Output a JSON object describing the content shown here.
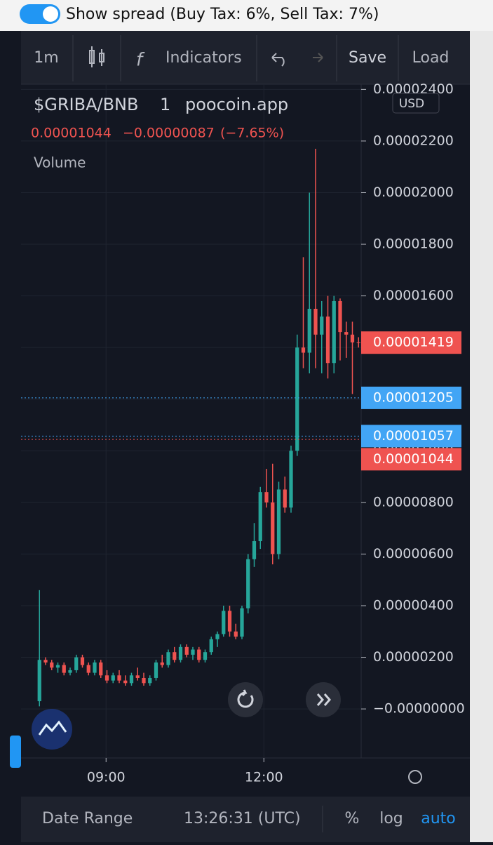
{
  "spread_toggle": {
    "label": "Show spread (Buy Tax: 6%, Sell Tax: 7%)"
  },
  "toolbar": {
    "interval": "1m",
    "indicators": "Indicators",
    "save": "Save",
    "load": "Load"
  },
  "legend": {
    "symbol": "$GRIBA/BNB",
    "interval": "1",
    "source": "poocoin.app",
    "currency": "USD",
    "last": "0.00001044",
    "change": "−0.00000087",
    "change_pct": "(−7.65%)",
    "volume": "Volume"
  },
  "chart_data": {
    "type": "candlestick",
    "up_color": "#26a69a",
    "down_color": "#ef5350",
    "x": [
      464,
      471,
      478,
      485,
      492,
      499,
      506,
      513,
      520,
      527,
      534,
      541,
      548,
      555,
      562,
      569,
      576,
      583,
      590,
      597,
      604,
      611,
      618,
      625,
      632,
      639,
      646,
      653,
      660,
      667,
      674,
      681,
      688,
      695,
      702,
      709,
      716,
      723,
      730,
      737,
      744,
      751,
      758,
      765,
      772,
      779,
      786,
      793,
      800,
      807,
      814,
      821,
      828
    ],
    "open": [
      3e-07,
      1.9e-06,
      1.8e-06,
      1.6e-06,
      1.7e-06,
      1.4e-06,
      1.5e-06,
      2e-06,
      1.7e-06,
      1.4e-06,
      1.8e-06,
      1.3e-06,
      1.1e-06,
      1.3e-06,
      1.1e-06,
      1e-06,
      1.3e-06,
      1.2e-06,
      1e-06,
      1.2e-06,
      1.8e-06,
      1.7e-06,
      2.2e-06,
      1.9e-06,
      2.4e-06,
      2.1e-06,
      2.3e-06,
      1.9e-06,
      2.2e-06,
      2.7e-06,
      2.9e-06,
      3.8e-06,
      3e-06,
      2.8e-06,
      3.9e-06,
      5.8e-06,
      6.5e-06,
      8.4e-06,
      8e-06,
      6e-06,
      8.5e-06,
      7.8e-06,
      1e-05,
      1.4e-05,
      1.38e-05,
      1.55e-05,
      1.45e-05,
      1.52e-05,
      1.34e-05,
      1.58e-05,
      1.46e-05,
      1.45e-05,
      1.42e-05
    ],
    "high": [
      4.6e-06,
      2e-06,
      1.9e-06,
      1.8e-06,
      1.8e-06,
      1.6e-06,
      2.1e-06,
      2.1e-06,
      1.8e-06,
      1.9e-06,
      1.9e-06,
      1.5e-06,
      1.4e-06,
      1.5e-06,
      1.3e-06,
      1.4e-06,
      1.6e-06,
      1.4e-06,
      1.3e-06,
      1.9e-06,
      2.1e-06,
      2.3e-06,
      2.4e-06,
      2.5e-06,
      2.5e-06,
      2.4e-06,
      2.4e-06,
      2.3e-06,
      2.8e-06,
      3e-06,
      4e-06,
      4e-06,
      3.3e-06,
      4e-06,
      6e-06,
      7.2e-06,
      8.6e-06,
      9.3e-06,
      9.5e-06,
      8.8e-06,
      9e-06,
      1.02e-05,
      1.45e-05,
      1.75e-05,
      2e-05,
      2.17e-05,
      1.58e-05,
      1.6e-05,
      1.6e-05,
      1.59e-05,
      1.5e-05,
      1.5e-05,
      1.44e-05
    ],
    "low": [
      1e-07,
      1.7e-06,
      1.5e-06,
      1.4e-06,
      1.3e-06,
      1.3e-06,
      1.4e-06,
      1.6e-06,
      1.3e-06,
      1.3e-06,
      1.2e-06,
      1e-06,
      1e-06,
      1e-06,
      9e-07,
      9e-07,
      1.1e-06,
      9e-07,
      9e-07,
      1.1e-06,
      1.6e-06,
      1.6e-06,
      1.8e-06,
      1.8e-06,
      2e-06,
      1.9e-06,
      1.8e-06,
      1.8e-06,
      2.1e-06,
      2.4e-06,
      2.8e-06,
      2.8e-06,
      2.7e-06,
      2.7e-06,
      3.7e-06,
      5.5e-06,
      6.2e-06,
      7.8e-06,
      5.6e-06,
      5.8e-06,
      7.6e-06,
      7.6e-06,
      9.8e-06,
      1.32e-05,
      1.3e-05,
      1.32e-05,
      1.3e-05,
      1.28e-05,
      1.3e-05,
      1.35e-05,
      1.36e-05,
      1.22e-05,
      1.4e-05
    ],
    "close": [
      1.9e-06,
      1.8e-06,
      1.6e-06,
      1.7e-06,
      1.4e-06,
      1.5e-06,
      2e-06,
      1.7e-06,
      1.4e-06,
      1.8e-06,
      1.3e-06,
      1.1e-06,
      1.3e-06,
      1.1e-06,
      1e-06,
      1.3e-06,
      1.2e-06,
      1e-06,
      1.2e-06,
      1.8e-06,
      1.7e-06,
      2.2e-06,
      1.9e-06,
      2.4e-06,
      2.1e-06,
      2.3e-06,
      1.9e-06,
      2.2e-06,
      2.7e-06,
      2.9e-06,
      3.8e-06,
      3e-06,
      2.8e-06,
      3.9e-06,
      5.8e-06,
      6.5e-06,
      8.4e-06,
      8e-06,
      6e-06,
      8.5e-06,
      7.8e-06,
      1e-05,
      1.4e-05,
      1.38e-05,
      1.55e-05,
      1.45e-05,
      1.52e-05,
      1.34e-05,
      1.58e-05,
      1.46e-05,
      1.45e-05,
      1.42e-05,
      1.419e-05
    ],
    "xlim": [
      443,
      831
    ],
    "xticks": [
      {
        "value": 540,
        "label": "09:00"
      },
      {
        "value": 720,
        "label": "12:00"
      }
    ],
    "ylim": [
      -1.9e-06,
      2.42e-05
    ],
    "yticks": [
      {
        "value": 2.4e-05,
        "label": "0.00002400"
      },
      {
        "value": 2.2e-05,
        "label": "0.00002200"
      },
      {
        "value": 2e-05,
        "label": "0.00002000"
      },
      {
        "value": 1.8e-05,
        "label": "0.00001800"
      },
      {
        "value": 1.6e-05,
        "label": "0.00001600"
      },
      {
        "value": 1.4e-05,
        "label": "0.00001400"
      },
      {
        "value": 1.2e-05,
        "label": "0.00001200"
      },
      {
        "value": 1e-05,
        "label": "0.00001000"
      },
      {
        "value": 8e-06,
        "label": "0.00000800"
      },
      {
        "value": 6e-06,
        "label": "0.00000600"
      },
      {
        "value": 4e-06,
        "label": "0.00000400"
      },
      {
        "value": 2e-06,
        "label": "0.00000200"
      },
      {
        "value": 0,
        "label": "−0.00000000"
      }
    ],
    "grid": true,
    "price_lines": [
      {
        "value": 1.419e-05,
        "label": "0.00001419",
        "color": "#ef5350"
      },
      {
        "value": 1.205e-05,
        "label": "0.00001205",
        "color": "#42a5f5"
      },
      {
        "value": 1.057e-05,
        "label": "0.00001057",
        "color": "#42a5f5"
      },
      {
        "value": 1.044e-05,
        "label": "0.00001044",
        "color": "#ef5350"
      }
    ]
  },
  "footer": {
    "date_range": "Date Range",
    "clock": "13:26:31 (UTC)",
    "percent": "%",
    "log": "log",
    "auto": "auto"
  }
}
